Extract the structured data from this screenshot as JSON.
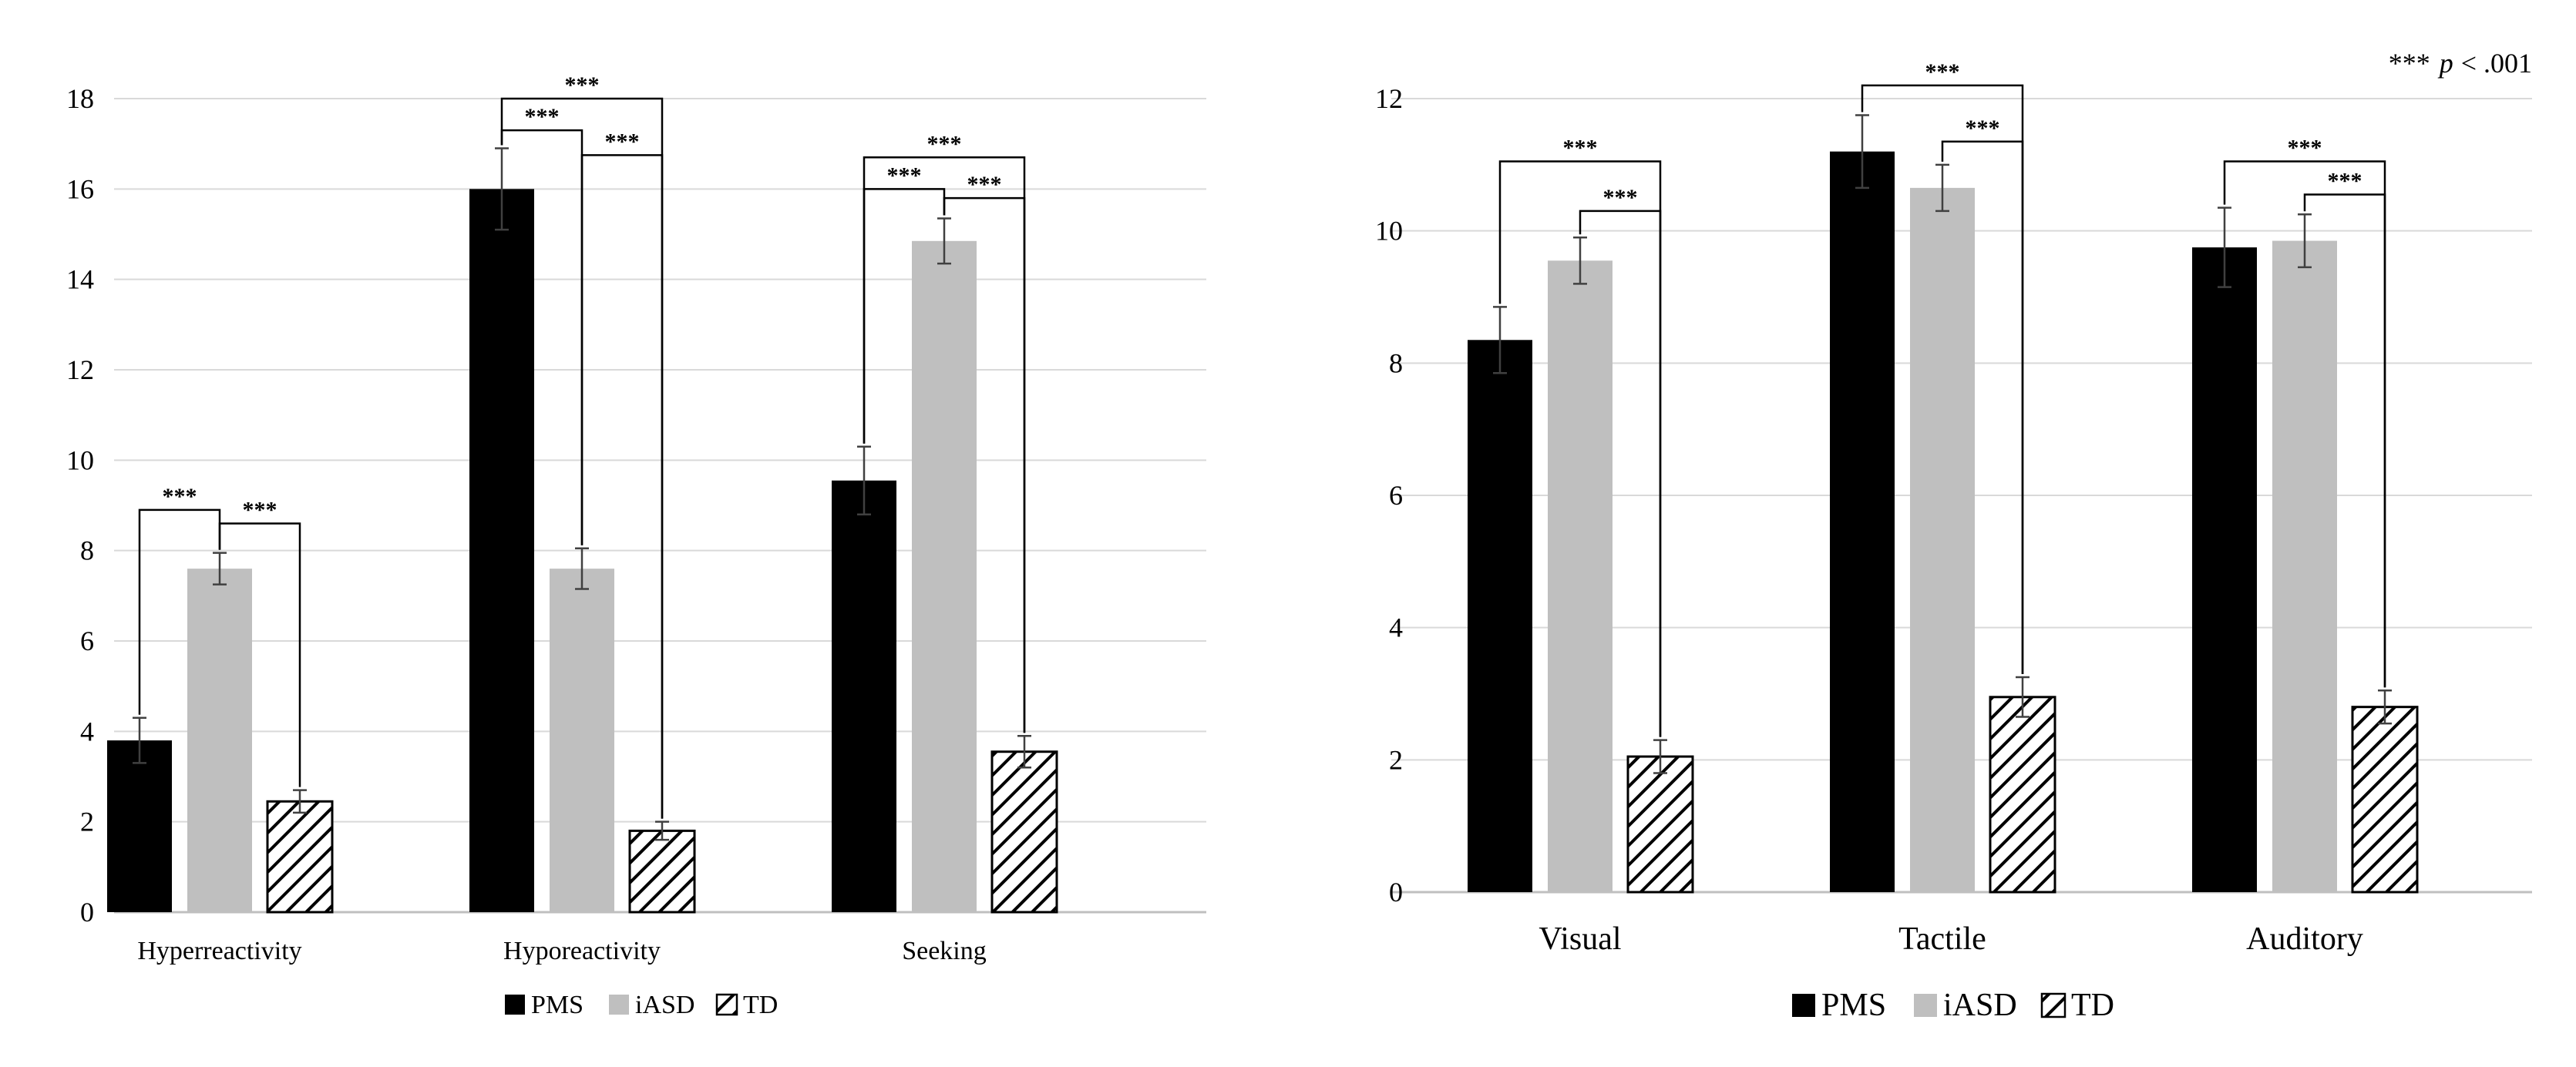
{
  "legend": {
    "items": [
      {
        "label": "PMS",
        "color": "#000000",
        "pattern": "solid"
      },
      {
        "label": "iASD",
        "color": "#bfbfbf",
        "pattern": "solid"
      },
      {
        "label": "TD",
        "color": "#ffffff",
        "pattern": "hatch"
      }
    ]
  },
  "significance_note": {
    "stars": "***",
    "p": "p",
    "rest": "< .001"
  },
  "chart_data": [
    {
      "type": "bar",
      "title": "",
      "xlabel": "",
      "ylabel": "",
      "ylim": [
        0,
        18
      ],
      "yticks": [
        0,
        2,
        4,
        6,
        8,
        10,
        12,
        14,
        16,
        18
      ],
      "grid": true,
      "legend_position": "bottom-center",
      "categories": [
        "Hyperreactivity",
        "Hyporeactivity",
        "Seeking"
      ],
      "series": [
        {
          "name": "PMS",
          "values": [
            3.8,
            16.0,
            9.55
          ],
          "errors": [
            0.5,
            0.9,
            0.75
          ]
        },
        {
          "name": "iASD",
          "values": [
            7.6,
            7.6,
            14.85
          ],
          "errors": [
            0.35,
            0.45,
            0.5
          ]
        },
        {
          "name": "TD",
          "values": [
            2.45,
            1.8,
            3.55
          ],
          "errors": [
            0.25,
            0.2,
            0.35
          ]
        }
      ],
      "significance": [
        {
          "category": 0,
          "from": 0,
          "to": 1,
          "label": "***",
          "top": 8.9
        },
        {
          "category": 0,
          "from": 1,
          "to": 2,
          "label": "***",
          "top": 8.6
        },
        {
          "category": 1,
          "from": 0,
          "to": 2,
          "label": "***",
          "top": 18.0
        },
        {
          "category": 1,
          "from": 0,
          "to": 1,
          "label": "***",
          "top": 17.3
        },
        {
          "category": 1,
          "from": 1,
          "to": 2,
          "label": "***",
          "top": 16.75
        },
        {
          "category": 2,
          "from": 0,
          "to": 2,
          "label": "***",
          "top": 16.7
        },
        {
          "category": 2,
          "from": 0,
          "to": 1,
          "label": "***",
          "top": 16.0
        },
        {
          "category": 2,
          "from": 1,
          "to": 2,
          "label": "***",
          "top": 15.8
        }
      ]
    },
    {
      "type": "bar",
      "title": "",
      "xlabel": "",
      "ylabel": "",
      "ylim": [
        0,
        12
      ],
      "yticks": [
        0,
        2,
        4,
        6,
        8,
        10,
        12
      ],
      "grid": true,
      "legend_position": "bottom-center",
      "categories": [
        "Visual",
        "Tactile",
        "Auditory"
      ],
      "series": [
        {
          "name": "PMS",
          "values": [
            8.35,
            11.2,
            9.75
          ],
          "errors": [
            0.5,
            0.55,
            0.6
          ]
        },
        {
          "name": "iASD",
          "values": [
            9.55,
            10.65,
            9.85
          ],
          "errors": [
            0.35,
            0.35,
            0.4
          ]
        },
        {
          "name": "TD",
          "values": [
            2.05,
            2.95,
            2.8
          ],
          "errors": [
            0.25,
            0.3,
            0.25
          ]
        }
      ],
      "significance": [
        {
          "category": 0,
          "from": 0,
          "to": 2,
          "label": "***",
          "top": 11.05
        },
        {
          "category": 0,
          "from": 1,
          "to": 2,
          "label": "***",
          "top": 10.3
        },
        {
          "category": 1,
          "from": 0,
          "to": 2,
          "label": "***",
          "top": 12.2
        },
        {
          "category": 1,
          "from": 1,
          "to": 2,
          "label": "***",
          "top": 11.35
        },
        {
          "category": 2,
          "from": 0,
          "to": 2,
          "label": "***",
          "top": 11.05
        },
        {
          "category": 2,
          "from": 1,
          "to": 2,
          "label": "***",
          "top": 10.55
        }
      ]
    }
  ]
}
